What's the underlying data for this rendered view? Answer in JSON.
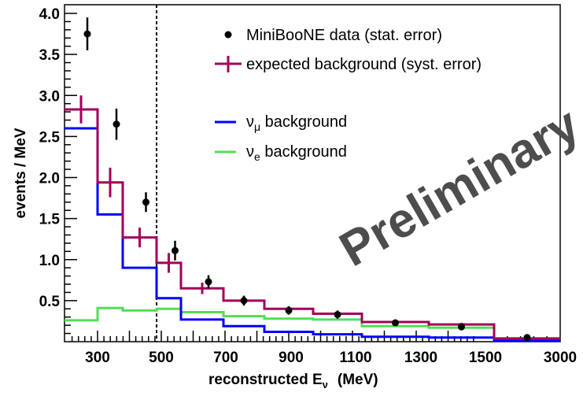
{
  "chart_data": {
    "type": "line",
    "title": "",
    "xlabel": "reconstructed E",
    "xlabel_sub": "ν",
    "xlabel_unit": "(MeV)",
    "ylabel": "events / MeV",
    "ylim": [
      0,
      4.1
    ],
    "x_ticks": [
      "300",
      "500",
      "700",
      "900",
      "1100",
      "1300",
      "1500",
      "3000"
    ],
    "y_ticks": [
      "0.5",
      "1.0",
      "1.5",
      "2.0",
      "2.5",
      "3.0",
      "3.5",
      "4.0"
    ],
    "y_tick_values": [
      0.5,
      1.0,
      1.5,
      2.0,
      2.5,
      3.0,
      3.5,
      4.0
    ],
    "bin_edges_label": [
      "200",
      "300",
      "375",
      "475",
      "550",
      "675",
      "800",
      "950",
      "1100",
      "1300",
      "1500",
      "3000"
    ],
    "cut_line_x": "475",
    "background_total": {
      "values": [
        2.83,
        1.94,
        1.27,
        0.96,
        0.65,
        0.5,
        0.4,
        0.34,
        0.24,
        0.21,
        0.04
      ],
      "errors": [
        0.17,
        0.18,
        0.12,
        0.12,
        0.07,
        0.05,
        0.03,
        0.03,
        0.02,
        0.02,
        0.005
      ],
      "color": "#a0005a"
    },
    "numu_background": {
      "values": [
        2.6,
        1.55,
        0.9,
        0.53,
        0.27,
        0.19,
        0.12,
        0.09,
        0.06,
        0.05,
        0.01
      ],
      "color": "#0000ff"
    },
    "nue_background": {
      "values": [
        0.26,
        0.41,
        0.38,
        0.4,
        0.36,
        0.31,
        0.28,
        0.27,
        0.19,
        0.17,
        0.03
      ],
      "color": "#55dd55"
    },
    "data": {
      "values": [
        3.75,
        2.65,
        1.7,
        1.11,
        0.73,
        0.5,
        0.38,
        0.33,
        0.23,
        0.18,
        0.05
      ],
      "errors": [
        0.2,
        0.19,
        0.12,
        0.12,
        0.08,
        0.06,
        0.05,
        0.05,
        0.03,
        0.03,
        0.01
      ],
      "color": "#000000"
    },
    "legend": [
      {
        "label": "MiniBooNE data (stat. error)",
        "marker": "dot"
      },
      {
        "label": "expected background (syst. error)",
        "marker": "cross"
      },
      {
        "label_main": "ν",
        "label_sub": "μ",
        "label_rest": " background",
        "marker": "line-blue"
      },
      {
        "label_main": "ν",
        "label_sub": "e",
        "label_rest": " background",
        "marker": "line-green"
      }
    ],
    "watermark": "Preliminary"
  }
}
